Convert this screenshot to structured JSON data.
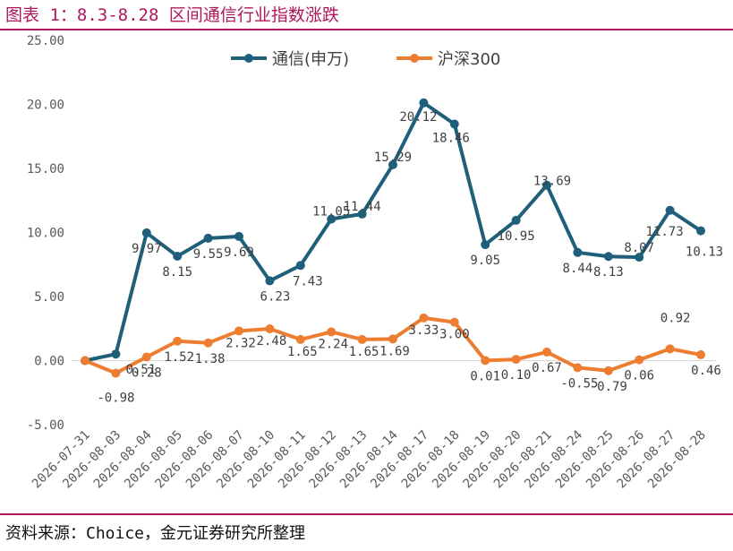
{
  "header": {
    "title": "图表 1：8.3-8.28 区间通信行业指数涨跌"
  },
  "footer": {
    "source": "资料来源：Choice，金元证券研究所整理"
  },
  "colors": {
    "accent": "#b0175a",
    "series_tongxin": "#1f5f7a",
    "series_hs300": "#ed7d31"
  },
  "chart_data": {
    "type": "line",
    "title": "",
    "xlabel": "",
    "ylabel": "",
    "ylim": [
      -5,
      25
    ],
    "yticks": [
      "25.00",
      "20.00",
      "15.00",
      "10.00",
      "5.00",
      "0.00",
      "-5.00"
    ],
    "grid": false,
    "legend": "top",
    "categories": [
      "2026-07-31",
      "2026-08-03",
      "2026-08-04",
      "2026-08-05",
      "2026-08-06",
      "2026-08-07",
      "2026-08-10",
      "2026-08-11",
      "2026-08-12",
      "2026-08-13",
      "2026-08-14",
      "2026-08-17",
      "2026-08-18",
      "2026-08-19",
      "2026-08-20",
      "2026-08-21",
      "2026-08-24",
      "2026-08-25",
      "2026-08-26",
      "2026-08-27",
      "2026-08-28"
    ],
    "series": [
      {
        "name": "通信(申万)",
        "values": [
          0,
          0.51,
          9.97,
          8.15,
          9.55,
          9.69,
          6.23,
          7.43,
          11.05,
          11.44,
          15.29,
          20.12,
          18.46,
          9.05,
          10.95,
          13.69,
          8.44,
          8.13,
          8.07,
          11.73,
          10.13
        ],
        "labels": [
          "",
          "0.51",
          "9.97",
          "8.15",
          "9.55",
          "9.69",
          "6.23",
          "7.43",
          "11.05",
          "11.44",
          "15.29",
          "20.12",
          "18.46",
          "9.05",
          "10.95",
          "13.69",
          "8.44",
          "8.13",
          "8.07",
          "11.73",
          "10.13"
        ]
      },
      {
        "name": "沪深300",
        "values": [
          0,
          -0.98,
          0.28,
          1.52,
          1.38,
          2.32,
          2.48,
          1.65,
          2.24,
          1.65,
          1.69,
          3.33,
          3.0,
          0.01,
          0.1,
          0.67,
          -0.55,
          -0.79,
          0.06,
          0.92,
          0.46
        ],
        "labels": [
          "",
          "-0.98",
          "0.28",
          "1.52",
          "1.38",
          "2.32",
          "2.48",
          "1.65",
          "2.24",
          "1.65",
          "1.69",
          "3.33",
          "3.00",
          "0.01",
          "0.10",
          "0.67",
          "-0.55",
          "-0.79",
          "0.06",
          "0.92",
          "0.46"
        ]
      }
    ]
  }
}
